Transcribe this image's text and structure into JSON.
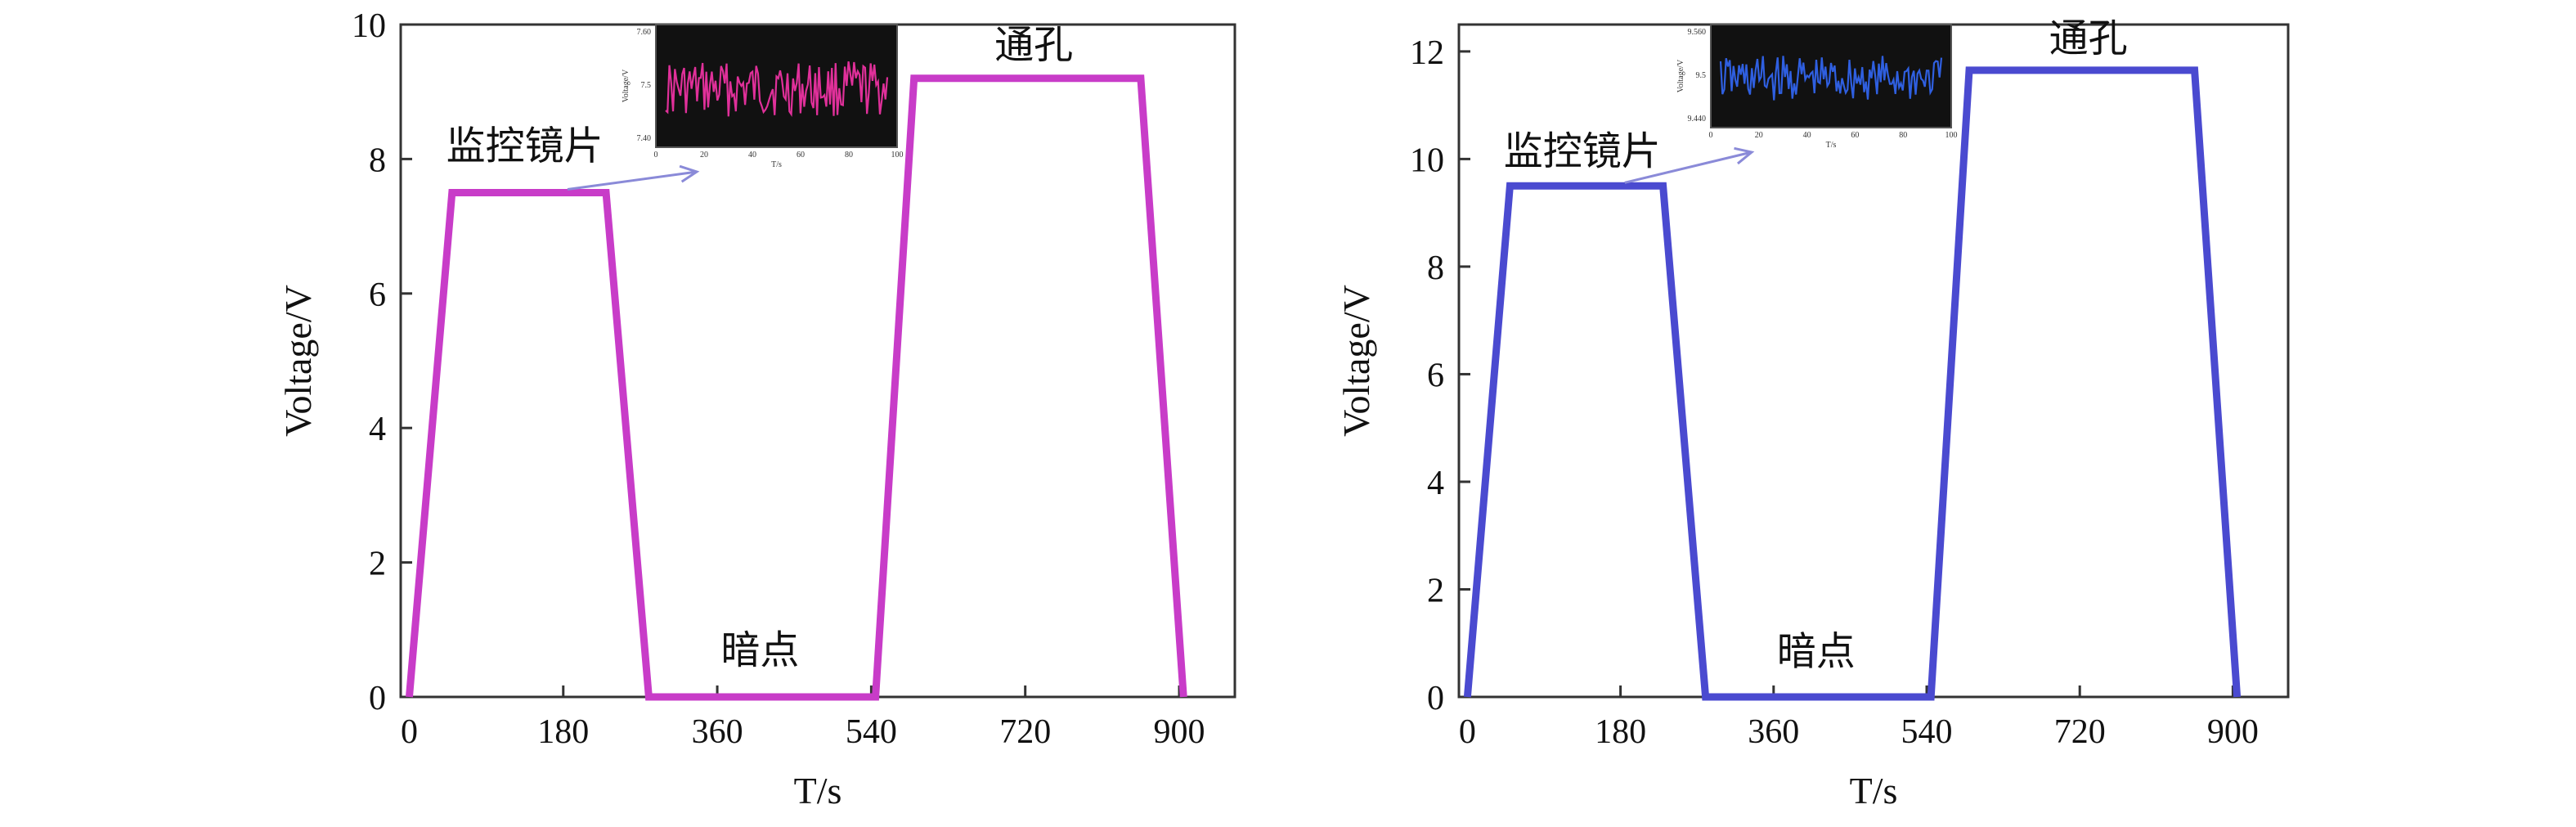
{
  "chart_data": [
    {
      "type": "line",
      "xlabel": "T/s",
      "ylabel": "Voltage/V",
      "xlim": [
        -10,
        965
      ],
      "ylim": [
        0,
        10
      ],
      "xticks": [
        0,
        180,
        360,
        540,
        720,
        900
      ],
      "yticks": [
        0,
        2,
        4,
        6,
        8,
        10
      ],
      "grid": false,
      "line_color": "#c83cc8",
      "series": [
        {
          "x": [
            0,
            50,
            230,
            280,
            545,
            590,
            855,
            905
          ],
          "y": [
            0,
            7.5,
            7.5,
            0,
            0,
            9.2,
            9.2,
            0
          ]
        }
      ],
      "annotations": [
        {
          "text": "监控镜片",
          "x": 135,
          "y": 8.0
        },
        {
          "text": "通孔",
          "x": 730,
          "y": 9.5
        },
        {
          "text": "暗点",
          "x": 410,
          "y": 0.5
        }
      ],
      "inset": {
        "type": "line",
        "line_color": "#e0309a",
        "background": "#111111",
        "ylabel": "Voltage/V",
        "xticks": [
          0,
          20,
          40,
          60,
          80,
          100
        ],
        "ytick_labels": [
          "7.60",
          "7.5",
          "7.40"
        ],
        "xlabel": "T/s"
      }
    },
    {
      "type": "line",
      "xlabel": "T/s",
      "ylabel": "Voltage/V",
      "xlim": [
        -10,
        965
      ],
      "ylim": [
        0,
        12.5
      ],
      "xticks": [
        0,
        180,
        360,
        540,
        720,
        900
      ],
      "yticks": [
        0,
        2,
        4,
        6,
        8,
        10,
        12
      ],
      "grid": false,
      "line_color": "#4a4ad0",
      "series": [
        {
          "x": [
            0,
            50,
            230,
            280,
            545,
            590,
            855,
            905
          ],
          "y": [
            0,
            9.5,
            9.5,
            0,
            0,
            11.65,
            11.65,
            0
          ]
        }
      ],
      "annotations": [
        {
          "text": "监控镜片",
          "x": 135,
          "y": 9.9
        },
        {
          "text": "通孔",
          "x": 730,
          "y": 12.0
        },
        {
          "text": "暗点",
          "x": 410,
          "y": 0.6
        }
      ],
      "inset": {
        "type": "line",
        "line_color": "#2f5fe0",
        "background": "#111111",
        "ylabel": "Voltage/V",
        "xticks": [
          0,
          20,
          40,
          60,
          80,
          100
        ],
        "ytick_labels": [
          "9.560",
          "9.5",
          "9.440"
        ],
        "xlabel": "T/s"
      }
    }
  ]
}
